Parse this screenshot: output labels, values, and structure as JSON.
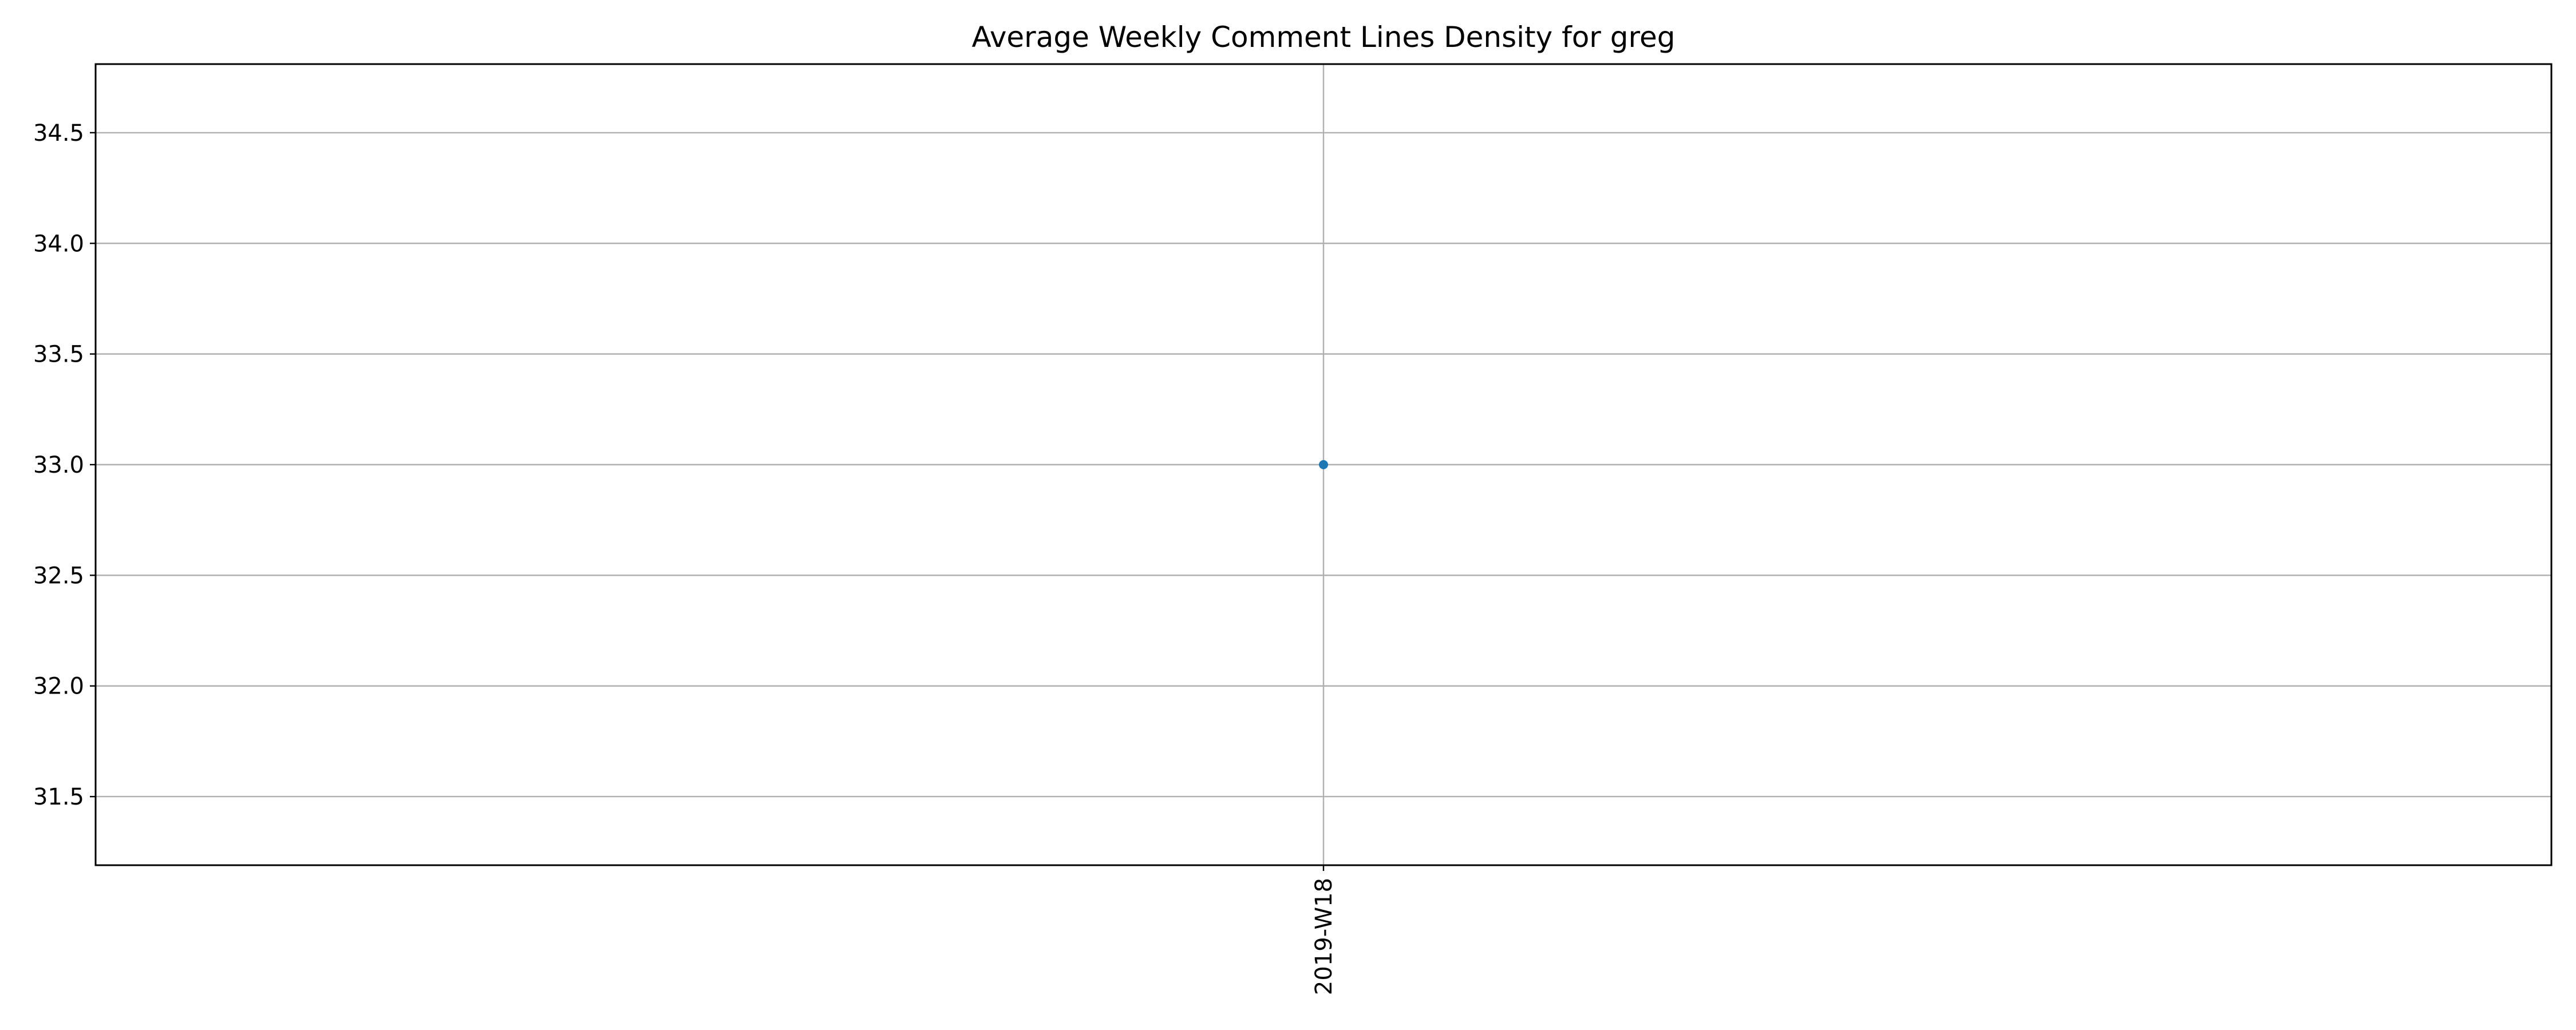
{
  "chart_data": {
    "type": "line",
    "title": "Average Weekly Comment Lines Density for greg",
    "xlabel": "",
    "ylabel": "",
    "categories": [
      "2019-W18"
    ],
    "series": [
      {
        "values": [
          33.0
        ],
        "color": "#1f77b4"
      }
    ],
    "ylim": [
      31.19,
      34.81
    ],
    "yticks": [
      31.5,
      32.0,
      32.5,
      33.0,
      33.5,
      34.0,
      34.5
    ],
    "ytick_labels": [
      "31.5",
      "32.0",
      "32.5",
      "33.0",
      "33.5",
      "34.0",
      "34.5"
    ],
    "grid": true,
    "legend": "none",
    "x_tick_rotation": 90
  }
}
